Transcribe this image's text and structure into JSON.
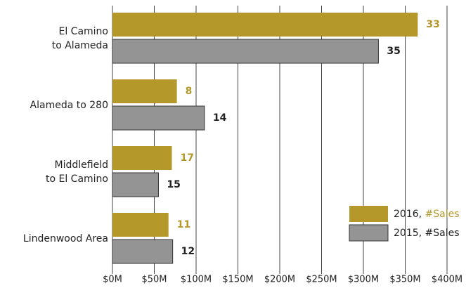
{
  "chart_data": {
    "type": "hbar",
    "categories": [
      "El Camino\nto Alameda",
      "Alameda to 280",
      "Middlefield\nto El Camino",
      "Lindenwood Area"
    ],
    "series": [
      {
        "name": "2016, #Sales",
        "color": "#b5982a",
        "label_color": "#b5982a",
        "values": [
          365,
          77,
          71,
          67
        ],
        "sales": [
          33,
          8,
          17,
          11
        ]
      },
      {
        "name": "2015, #Sales",
        "color": "#949494",
        "label_color": "#222222",
        "values": [
          318,
          110,
          55,
          72
        ],
        "sales": [
          35,
          14,
          15,
          12
        ]
      }
    ],
    "xlim": [
      0,
      400
    ],
    "xticks": [
      {
        "value": 0,
        "label": "$0M"
      },
      {
        "value": 50,
        "label": "$50M"
      },
      {
        "value": 100,
        "label": "$100M"
      },
      {
        "value": 150,
        "label": "$150M"
      },
      {
        "value": 200,
        "label": "$200M"
      },
      {
        "value": 250,
        "label": "$250M"
      },
      {
        "value": 300,
        "label": "$300M"
      },
      {
        "value": 350,
        "label": "$350M"
      },
      {
        "value": 400,
        "label": "$400M"
      }
    ],
    "grid": true,
    "legend": "lower right"
  }
}
